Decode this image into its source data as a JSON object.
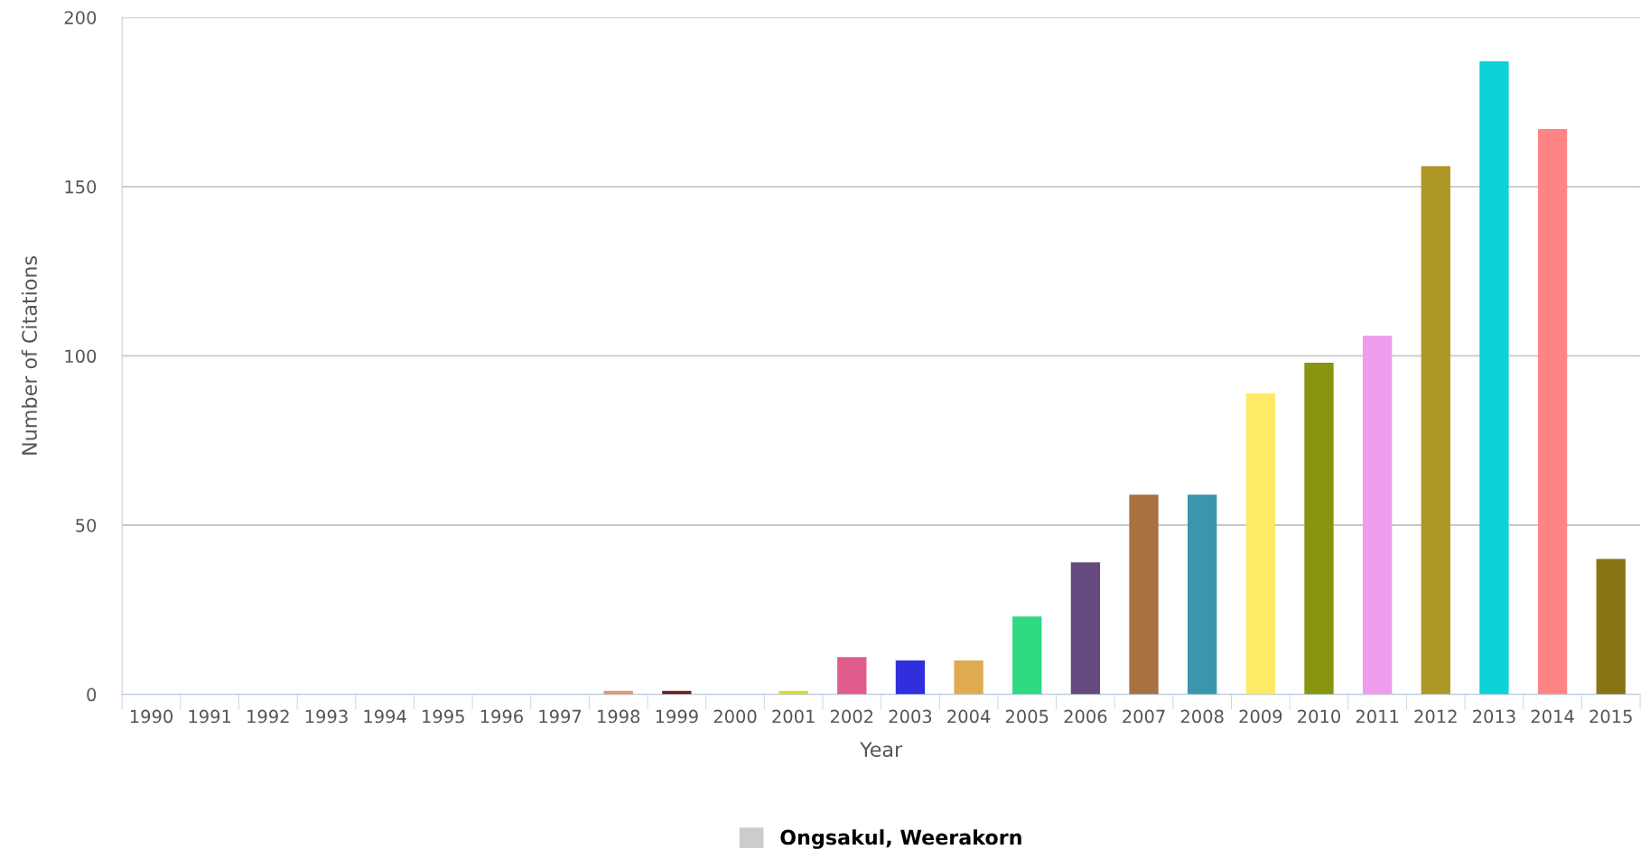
{
  "chart_data": {
    "type": "bar",
    "xlabel": "Year",
    "ylabel": "Number of Citations",
    "categories": [
      "1990",
      "1991",
      "1992",
      "1993",
      "1994",
      "1995",
      "1996",
      "1997",
      "1998",
      "1999",
      "2000",
      "2001",
      "2002",
      "2003",
      "2004",
      "2005",
      "2006",
      "2007",
      "2008",
      "2009",
      "2010",
      "2011",
      "2012",
      "2013",
      "2014",
      "2015"
    ],
    "series": [
      {
        "name": "Ongsakul, Weerakorn",
        "color": "#cccccc",
        "values": [
          0,
          0,
          0,
          0,
          0,
          0,
          0,
          0,
          1,
          1,
          0,
          1,
          11,
          10,
          10,
          23,
          39,
          59,
          59,
          89,
          98,
          106,
          156,
          187,
          167,
          40
        ],
        "colors": [
          "#cccccc",
          "#cccccc",
          "#cccccc",
          "#cccccc",
          "#cccccc",
          "#cccccc",
          "#cccccc",
          "#cccccc",
          "#e8916a",
          "#6b1d1d",
          "#cccccc",
          "#d9d92b",
          "#e05c8c",
          "#2f2fdc",
          "#e0ab50",
          "#2ed982",
          "#654a80",
          "#a87142",
          "#3a95ad",
          "#ffea66",
          "#88950f",
          "#ee9ded",
          "#ae9725",
          "#0ed3d6",
          "#ff8585",
          "#8a7314"
        ]
      }
    ],
    "ylim": [
      0,
      200
    ],
    "yticks": [
      0,
      50,
      100,
      150,
      200
    ],
    "grid": "y",
    "legend": "bottom"
  }
}
